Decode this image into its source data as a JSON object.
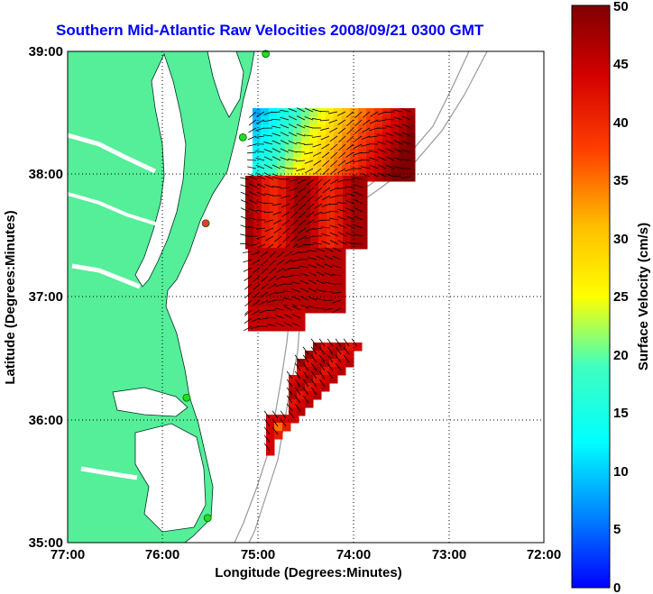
{
  "title": "Southern Mid-Atlantic Raw Velocities 2008/09/21 0300 GMT",
  "map": {
    "xlabel": "Longitude (Degrees:Minutes)",
    "ylabel": "Latitude (Degrees:Minutes)",
    "x_ticks": [
      "77:00",
      "76:00",
      "75:00",
      "74:00",
      "73:00",
      "72:00"
    ],
    "y_ticks": [
      "39:00",
      "38:00",
      "37:00",
      "36:00",
      "35:00"
    ],
    "land_color": "#55ee99",
    "grid": "dotted",
    "stations": [
      {
        "lon": -74.92,
        "lat": 38.98,
        "status": "green"
      },
      {
        "lon": -75.16,
        "lat": 38.3,
        "status": "green"
      },
      {
        "lon": -75.55,
        "lat": 37.6,
        "status": "red"
      },
      {
        "lon": -75.75,
        "lat": 36.18,
        "status": "green"
      },
      {
        "lon": -75.53,
        "lat": 35.2,
        "status": "green"
      }
    ]
  },
  "colorbar": {
    "label": "Surface Velocity (cm/s)",
    "ticks": [
      "50",
      "45",
      "40",
      "35",
      "30",
      "25",
      "20",
      "15",
      "10",
      "5",
      "0"
    ],
    "min": 0,
    "max": 50,
    "colormap": "jet"
  }
}
